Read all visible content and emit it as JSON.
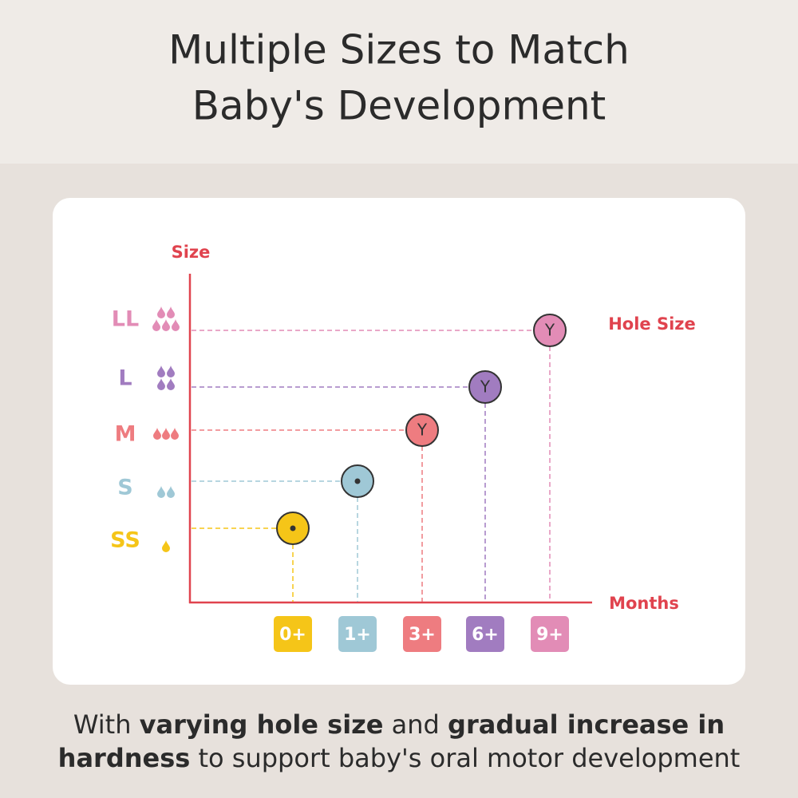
{
  "header": {
    "title_lines": [
      "Multiple Sizes to Match",
      "Baby's Development"
    ]
  },
  "diagram": {
    "y_axis_label": "Size",
    "x_axis_label": "Months",
    "hole_label": "Hole Size",
    "sizes": [
      {
        "label": "SS",
        "month": "0+",
        "color": "#f5c518"
      },
      {
        "label": "S",
        "month": "1+",
        "color": "#9fc8d6"
      },
      {
        "label": "M",
        "month": "3+",
        "hole": "Y",
        "color": "#ee7c80"
      },
      {
        "label": "L",
        "month": "6+",
        "hole": "Y",
        "color": "#a17cc0"
      },
      {
        "label": "LL",
        "month": "9+",
        "hole": "Y",
        "color": "#e28cb6"
      }
    ]
  },
  "footer": {
    "lines": [
      [
        {
          "text": "With ",
          "bold": false
        },
        {
          "text": "varying hole size",
          "bold": true
        },
        {
          "text": " and ",
          "bold": false
        },
        {
          "text": "gradual increase in",
          "bold": true
        }
      ],
      [
        {
          "text": "hardness",
          "bold": true
        },
        {
          "text": " to support baby's oral motor development",
          "bold": false
        }
      ]
    ]
  }
}
